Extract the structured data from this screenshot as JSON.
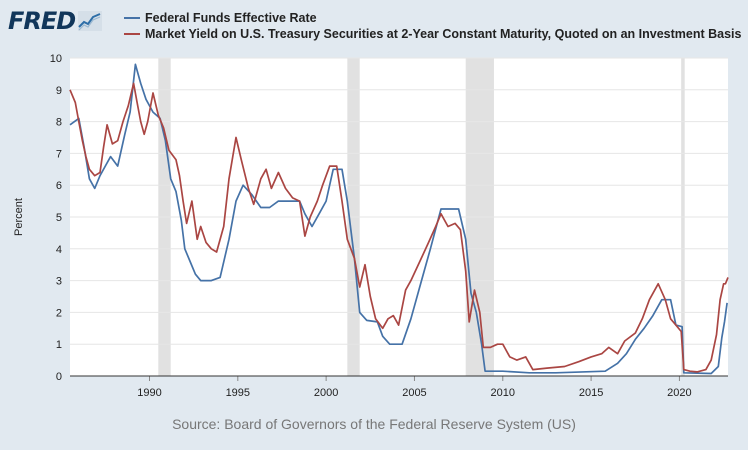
{
  "header": {
    "logo_text": "FRED",
    "logo_icon": "trend-line-icon"
  },
  "legend": [
    {
      "label": "Federal Funds Effective Rate",
      "color": "#4572a7"
    },
    {
      "label": "Market Yield on U.S. Treasury Securities at 2-Year Constant Maturity, Quoted on an Investment Basis",
      "color": "#aa4643"
    }
  ],
  "source_text": "Source: Board of Governors of the Federal Reserve System (US)",
  "chart_data": {
    "type": "line",
    "ylabel": "Percent",
    "xlim": [
      1985.5,
      2022.75
    ],
    "ylim": [
      0,
      10
    ],
    "yticks": [
      0,
      1,
      2,
      3,
      4,
      5,
      6,
      7,
      8,
      9,
      10
    ],
    "xticks": [
      1990,
      1995,
      2000,
      2005,
      2010,
      2015,
      2020
    ],
    "grid": true,
    "legend_position": "top",
    "recessions": [
      [
        1990.5,
        1991.2
      ],
      [
        2001.2,
        2001.9
      ],
      [
        2007.9,
        2009.5
      ],
      [
        2020.1,
        2020.3
      ]
    ],
    "series": [
      {
        "name": "Federal Funds Effective Rate",
        "color": "#4572a7",
        "points": [
          [
            1985.5,
            7.9
          ],
          [
            1986.0,
            8.1
          ],
          [
            1986.3,
            7.2
          ],
          [
            1986.6,
            6.2
          ],
          [
            1986.9,
            5.9
          ],
          [
            1987.2,
            6.3
          ],
          [
            1987.5,
            6.6
          ],
          [
            1987.8,
            6.9
          ],
          [
            1988.2,
            6.6
          ],
          [
            1988.6,
            7.6
          ],
          [
            1988.9,
            8.3
          ],
          [
            1989.2,
            9.8
          ],
          [
            1989.5,
            9.2
          ],
          [
            1989.8,
            8.7
          ],
          [
            1990.2,
            8.3
          ],
          [
            1990.6,
            8.1
          ],
          [
            1990.9,
            7.4
          ],
          [
            1991.2,
            6.2
          ],
          [
            1991.5,
            5.8
          ],
          [
            1991.8,
            4.9
          ],
          [
            1992.0,
            4.0
          ],
          [
            1992.3,
            3.6
          ],
          [
            1992.6,
            3.2
          ],
          [
            1992.9,
            3.0
          ],
          [
            1993.5,
            3.0
          ],
          [
            1994.0,
            3.1
          ],
          [
            1994.5,
            4.3
          ],
          [
            1994.9,
            5.5
          ],
          [
            1995.3,
            6.0
          ],
          [
            1995.8,
            5.7
          ],
          [
            1996.3,
            5.3
          ],
          [
            1996.8,
            5.3
          ],
          [
            1997.3,
            5.5
          ],
          [
            1997.8,
            5.5
          ],
          [
            1998.5,
            5.5
          ],
          [
            1998.8,
            5.1
          ],
          [
            1999.2,
            4.7
          ],
          [
            1999.6,
            5.1
          ],
          [
            2000.0,
            5.5
          ],
          [
            2000.4,
            6.5
          ],
          [
            2000.9,
            6.5
          ],
          [
            2001.2,
            5.5
          ],
          [
            2001.6,
            3.7
          ],
          [
            2001.9,
            2.0
          ],
          [
            2002.3,
            1.75
          ],
          [
            2002.9,
            1.7
          ],
          [
            2003.2,
            1.25
          ],
          [
            2003.6,
            1.0
          ],
          [
            2004.3,
            1.0
          ],
          [
            2004.8,
            1.8
          ],
          [
            2005.4,
            3.0
          ],
          [
            2005.9,
            4.0
          ],
          [
            2006.5,
            5.25
          ],
          [
            2007.5,
            5.25
          ],
          [
            2007.9,
            4.3
          ],
          [
            2008.2,
            2.6
          ],
          [
            2008.5,
            2.0
          ],
          [
            2008.8,
            1.0
          ],
          [
            2009.0,
            0.15
          ],
          [
            2010.0,
            0.15
          ],
          [
            2011.5,
            0.1
          ],
          [
            2013.0,
            0.1
          ],
          [
            2015.8,
            0.15
          ],
          [
            2016.5,
            0.4
          ],
          [
            2017.0,
            0.7
          ],
          [
            2017.5,
            1.15
          ],
          [
            2018.0,
            1.5
          ],
          [
            2018.5,
            1.9
          ],
          [
            2019.0,
            2.4
          ],
          [
            2019.5,
            2.4
          ],
          [
            2019.8,
            1.6
          ],
          [
            2020.15,
            1.55
          ],
          [
            2020.25,
            0.1
          ],
          [
            2021.8,
            0.08
          ],
          [
            2022.2,
            0.3
          ],
          [
            2022.4,
            1.2
          ],
          [
            2022.55,
            1.7
          ],
          [
            2022.7,
            2.3
          ]
        ]
      },
      {
        "name": "Market Yield on U.S. Treasury Securities at 2-Year Constant Maturity, Quoted on an Investment Basis",
        "color": "#aa4643",
        "points": [
          [
            1985.5,
            9.0
          ],
          [
            1985.8,
            8.6
          ],
          [
            1986.0,
            8.0
          ],
          [
            1986.2,
            7.4
          ],
          [
            1986.4,
            6.9
          ],
          [
            1986.6,
            6.5
          ],
          [
            1986.9,
            6.3
          ],
          [
            1987.2,
            6.4
          ],
          [
            1987.4,
            7.2
          ],
          [
            1987.6,
            7.9
          ],
          [
            1987.9,
            7.3
          ],
          [
            1988.2,
            7.4
          ],
          [
            1988.5,
            8.0
          ],
          [
            1988.8,
            8.5
          ],
          [
            1989.1,
            9.2
          ],
          [
            1989.3,
            8.6
          ],
          [
            1989.5,
            8.0
          ],
          [
            1989.7,
            7.6
          ],
          [
            1989.9,
            8.0
          ],
          [
            1990.2,
            8.9
          ],
          [
            1990.5,
            8.2
          ],
          [
            1990.8,
            7.8
          ],
          [
            1991.1,
            7.1
          ],
          [
            1991.5,
            6.8
          ],
          [
            1991.7,
            6.3
          ],
          [
            1991.9,
            5.5
          ],
          [
            1992.1,
            4.8
          ],
          [
            1992.4,
            5.5
          ],
          [
            1992.7,
            4.3
          ],
          [
            1992.9,
            4.7
          ],
          [
            1993.2,
            4.2
          ],
          [
            1993.5,
            4.0
          ],
          [
            1993.8,
            3.9
          ],
          [
            1994.2,
            4.7
          ],
          [
            1994.5,
            6.2
          ],
          [
            1994.9,
            7.5
          ],
          [
            1995.2,
            6.8
          ],
          [
            1995.6,
            5.9
          ],
          [
            1995.9,
            5.4
          ],
          [
            1996.3,
            6.2
          ],
          [
            1996.6,
            6.5
          ],
          [
            1996.9,
            5.9
          ],
          [
            1997.3,
            6.4
          ],
          [
            1997.7,
            5.9
          ],
          [
            1998.1,
            5.6
          ],
          [
            1998.5,
            5.5
          ],
          [
            1998.8,
            4.4
          ],
          [
            1999.1,
            5.0
          ],
          [
            1999.5,
            5.5
          ],
          [
            1999.8,
            6.0
          ],
          [
            2000.2,
            6.6
          ],
          [
            2000.6,
            6.6
          ],
          [
            2000.9,
            5.5
          ],
          [
            2001.2,
            4.3
          ],
          [
            2001.6,
            3.7
          ],
          [
            2001.9,
            2.8
          ],
          [
            2002.2,
            3.5
          ],
          [
            2002.5,
            2.5
          ],
          [
            2002.8,
            1.8
          ],
          [
            2003.2,
            1.5
          ],
          [
            2003.5,
            1.8
          ],
          [
            2003.8,
            1.9
          ],
          [
            2004.1,
            1.6
          ],
          [
            2004.5,
            2.7
          ],
          [
            2004.8,
            3.0
          ],
          [
            2005.3,
            3.6
          ],
          [
            2005.8,
            4.2
          ],
          [
            2006.2,
            4.7
          ],
          [
            2006.5,
            5.1
          ],
          [
            2006.9,
            4.7
          ],
          [
            2007.3,
            4.8
          ],
          [
            2007.6,
            4.6
          ],
          [
            2007.9,
            3.3
          ],
          [
            2008.1,
            1.7
          ],
          [
            2008.4,
            2.7
          ],
          [
            2008.7,
            2.0
          ],
          [
            2008.9,
            0.9
          ],
          [
            2009.3,
            0.9
          ],
          [
            2009.7,
            1.0
          ],
          [
            2010.0,
            1.0
          ],
          [
            2010.4,
            0.6
          ],
          [
            2010.8,
            0.5
          ],
          [
            2011.3,
            0.6
          ],
          [
            2011.7,
            0.2
          ],
          [
            2012.5,
            0.25
          ],
          [
            2013.5,
            0.3
          ],
          [
            2014.3,
            0.45
          ],
          [
            2015.0,
            0.6
          ],
          [
            2015.6,
            0.7
          ],
          [
            2016.0,
            0.9
          ],
          [
            2016.5,
            0.7
          ],
          [
            2016.9,
            1.1
          ],
          [
            2017.5,
            1.35
          ],
          [
            2017.9,
            1.8
          ],
          [
            2018.3,
            2.4
          ],
          [
            2018.8,
            2.9
          ],
          [
            2019.2,
            2.4
          ],
          [
            2019.5,
            1.8
          ],
          [
            2019.8,
            1.6
          ],
          [
            2020.1,
            1.4
          ],
          [
            2020.25,
            0.2
          ],
          [
            2020.6,
            0.15
          ],
          [
            2021.0,
            0.13
          ],
          [
            2021.5,
            0.2
          ],
          [
            2021.8,
            0.5
          ],
          [
            2022.1,
            1.3
          ],
          [
            2022.3,
            2.4
          ],
          [
            2022.5,
            2.9
          ],
          [
            2022.6,
            2.9
          ],
          [
            2022.75,
            3.1
          ]
        ]
      }
    ]
  }
}
